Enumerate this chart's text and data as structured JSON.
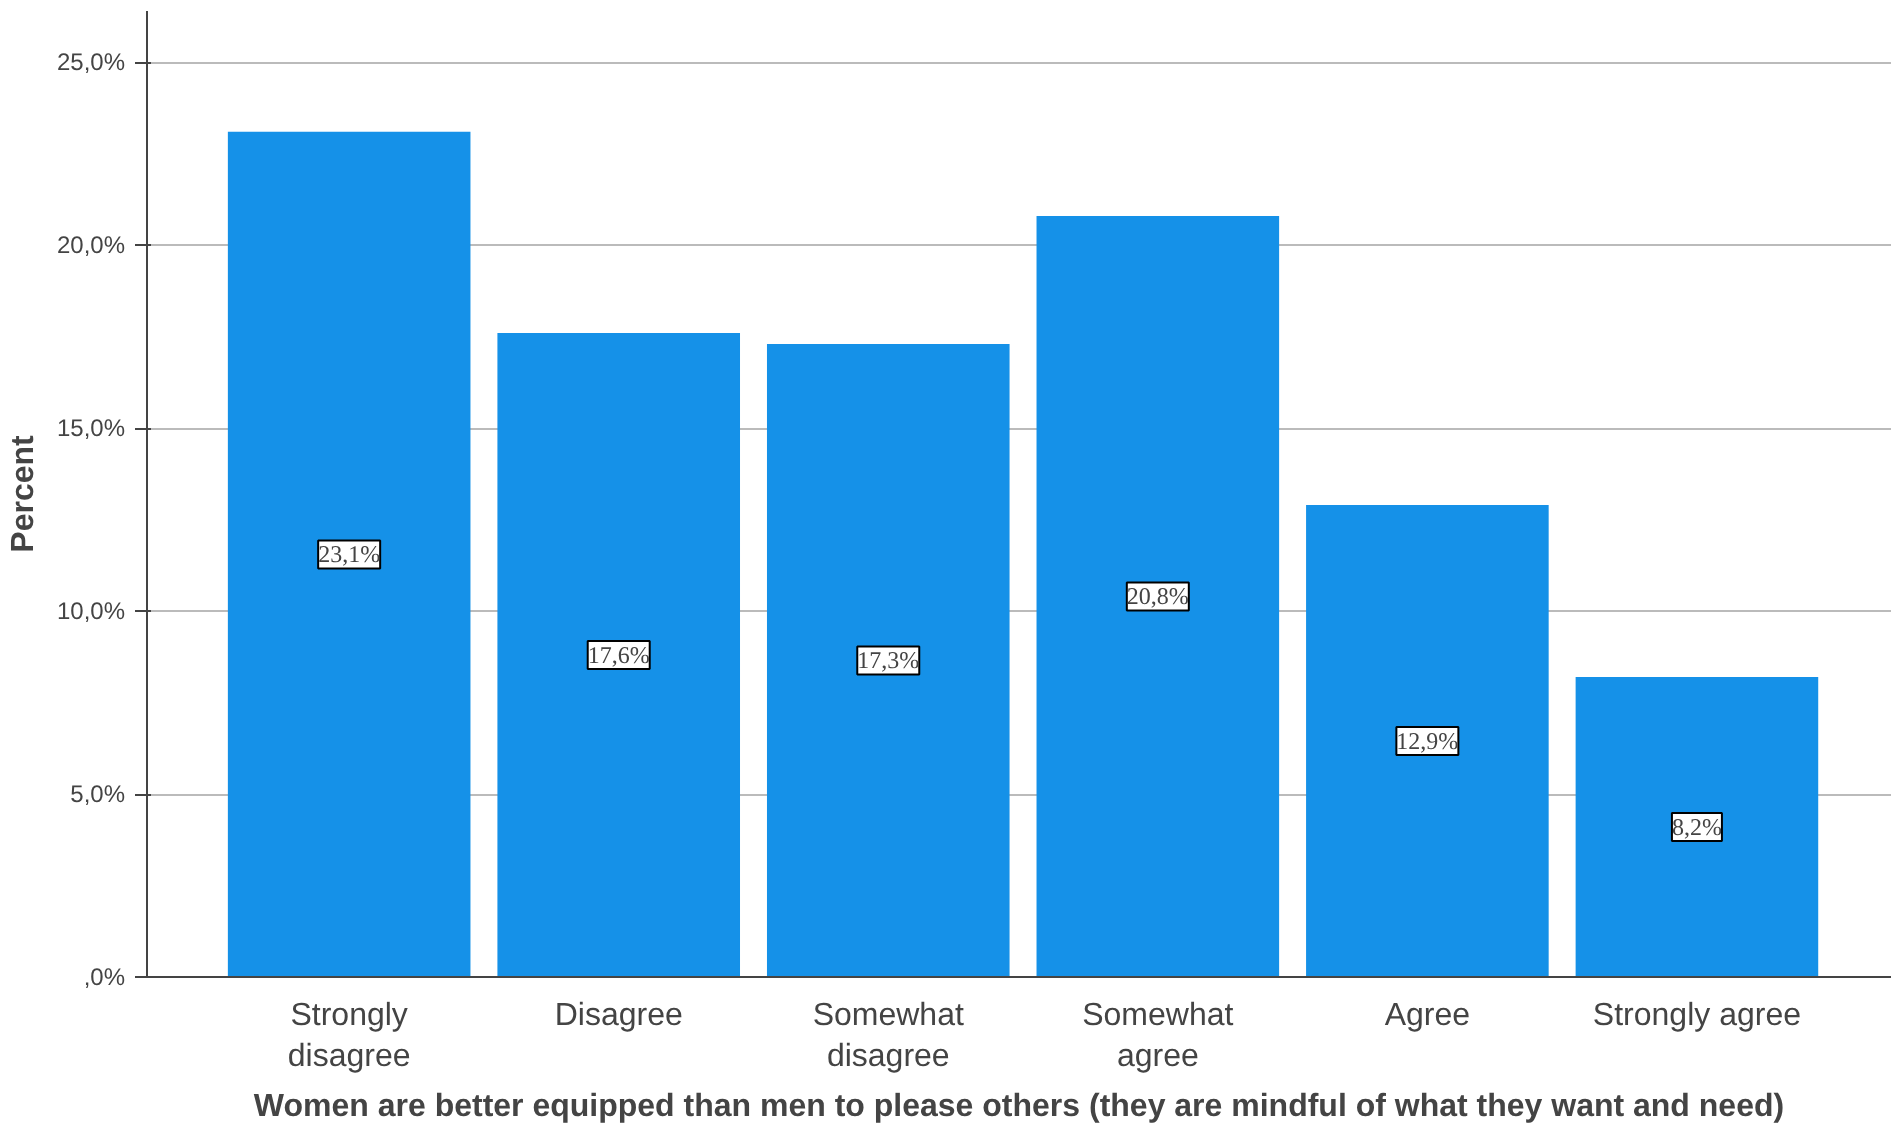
{
  "chart_data": {
    "type": "bar",
    "xlabel": "Women are better equipped than men to please others (they are mindful of what they want and need)",
    "ylabel": "Percent",
    "categories": [
      "Strongly\ndisagree",
      "Disagree",
      "Somewhat\ndisagree",
      "Somewhat\nagree",
      "Agree",
      "Strongly agree"
    ],
    "values": [
      23.1,
      17.6,
      17.3,
      20.8,
      12.9,
      8.2
    ],
    "value_labels": [
      "23,1%",
      "17,6%",
      "17,3%",
      "20,8%",
      "12,9%",
      "8,2%"
    ],
    "color": "#1591e8",
    "ylim": [
      0,
      26.4
    ],
    "yticks": [
      {
        "value": 0,
        "label": ",0%"
      },
      {
        "value": 5,
        "label": "5,0%"
      },
      {
        "value": 10,
        "label": "10,0%"
      },
      {
        "value": 15,
        "label": "15,0%"
      },
      {
        "value": 20,
        "label": "20,0%"
      },
      {
        "value": 25,
        "label": "25,0%"
      }
    ],
    "grid": "y"
  }
}
